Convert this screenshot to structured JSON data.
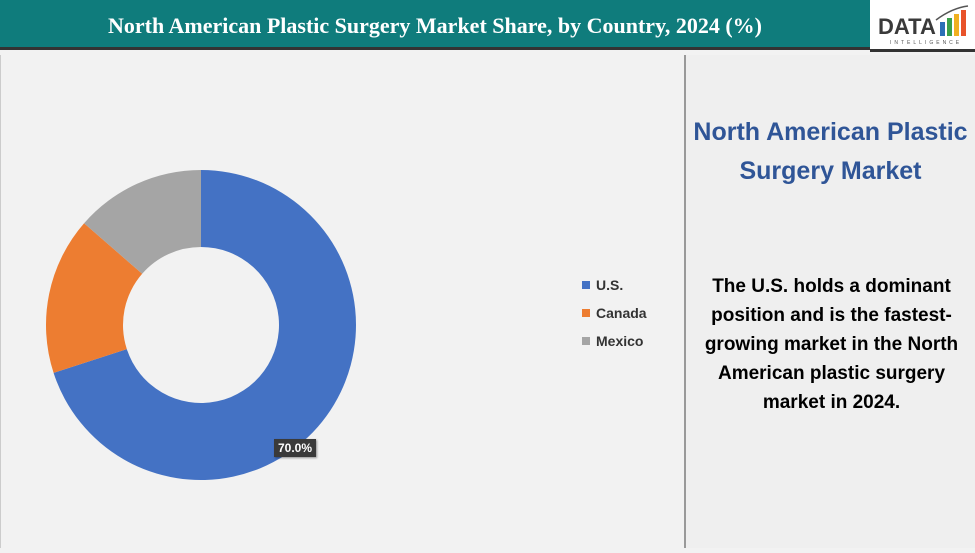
{
  "header": {
    "title": "North American Plastic Surgery Market Share, by Country, 2024 (%)"
  },
  "logo": {
    "text": "DATA",
    "subtext": "INTELLIGENCE"
  },
  "side": {
    "title": "North American Plastic Surgery Market",
    "text": "The U.S. holds a dominant position and is the fastest-growing market in the North American plastic surgery market in 2024."
  },
  "chart_data": {
    "type": "pie",
    "subtype": "donut",
    "categories": [
      "U.S.",
      "Canada",
      "Mexico"
    ],
    "values": [
      70.0,
      16.4,
      13.6
    ],
    "colors": [
      "#4472c4",
      "#ed7d31",
      "#a5a5a5"
    ],
    "data_labels": [
      "70.0%",
      "",
      ""
    ],
    "legend": "right"
  }
}
